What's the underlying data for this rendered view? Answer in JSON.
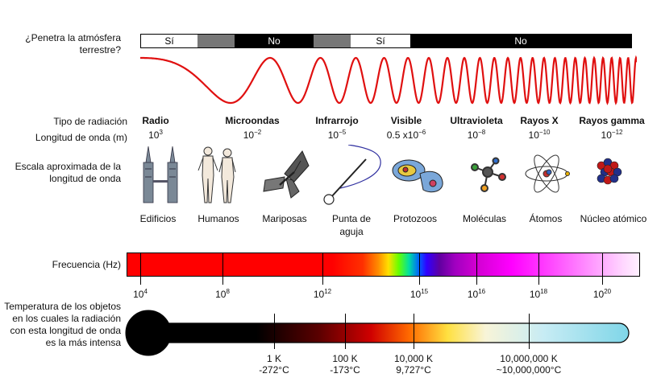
{
  "atmosphere": {
    "question": "¿Penetra la atmósfera terrestre?",
    "segments": [
      {
        "label": "Sí",
        "kind": "yes"
      },
      {
        "label": "",
        "kind": "grey"
      },
      {
        "label": "No",
        "kind": "no"
      },
      {
        "label": "",
        "kind": "grey"
      },
      {
        "label": "Sí",
        "kind": "yes"
      },
      {
        "label": "No",
        "kind": "no"
      }
    ]
  },
  "rows": {
    "radiation_type": "Tipo de radiación",
    "wavelength": "Longitud de onda (m)",
    "scale": "Escala aproximada de la longitud de onda",
    "frequency": "Frecuencia (Hz)",
    "temperature": "Temperatura de los objetos en los cuales la radiación con esta longitud de onda es la más intensa"
  },
  "radiation": [
    {
      "name": "Radio",
      "wl_base": "10",
      "wl_exp": "3",
      "wl_prefix": ""
    },
    {
      "name": "Microondas",
      "wl_base": "10",
      "wl_exp": "−2",
      "wl_prefix": ""
    },
    {
      "name": "Infrarrojo",
      "wl_base": "10",
      "wl_exp": "−5",
      "wl_prefix": ""
    },
    {
      "name": "Visible",
      "wl_base": "10",
      "wl_exp": "−6",
      "wl_prefix": "0.5 x"
    },
    {
      "name": "Ultravioleta",
      "wl_base": "10",
      "wl_exp": "−8",
      "wl_prefix": ""
    },
    {
      "name": "Rayos X",
      "wl_base": "10",
      "wl_exp": "−10",
      "wl_prefix": ""
    },
    {
      "name": "Rayos gamma",
      "wl_base": "10",
      "wl_exp": "−12",
      "wl_prefix": ""
    }
  ],
  "objects": [
    {
      "name": "Edificios",
      "icon": "buildings-icon"
    },
    {
      "name": "Humanos",
      "icon": "humans-icon"
    },
    {
      "name": "Mariposas",
      "icon": "butterfly-icon"
    },
    {
      "name": "Punta de aguja",
      "icon": "needle-icon"
    },
    {
      "name": "Protozoos",
      "icon": "protozoa-icon"
    },
    {
      "name": "Moléculas",
      "icon": "molecule-icon"
    },
    {
      "name": "Átomos",
      "icon": "atom-icon"
    },
    {
      "name": "Núcleo atómico",
      "icon": "nucleus-icon"
    }
  ],
  "frequency_ticks": [
    {
      "base": "10",
      "exp": "4"
    },
    {
      "base": "10",
      "exp": "8"
    },
    {
      "base": "10",
      "exp": "12"
    },
    {
      "base": "10",
      "exp": "15"
    },
    {
      "base": "10",
      "exp": "16"
    },
    {
      "base": "10",
      "exp": "18"
    },
    {
      "base": "10",
      "exp": "20"
    }
  ],
  "temperatures": [
    {
      "k": "1 K",
      "c": "-272°C"
    },
    {
      "k": "100 K",
      "c": "-173°C"
    },
    {
      "k": "10,000 K",
      "c": "9,727°C"
    },
    {
      "k": "10,000,000 K",
      "c": "~10,000,000°C"
    }
  ],
  "colors": {
    "wave": "#e01010",
    "thermometer_bulb": "#000000"
  }
}
